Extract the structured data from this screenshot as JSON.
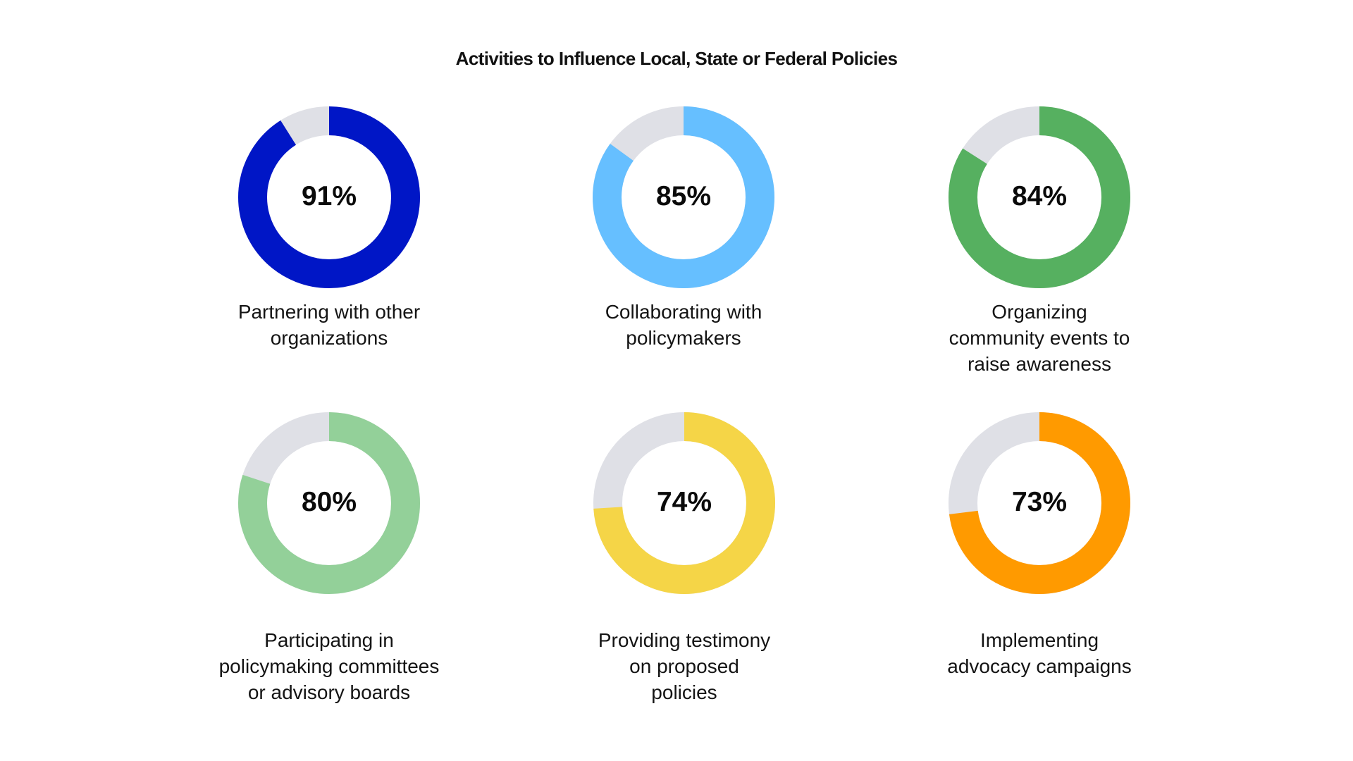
{
  "title": "Activities to Influence Local, State or Federal Policies",
  "track_color": "#DFE0E6",
  "items": [
    {
      "value": 91,
      "value_label": "91%",
      "label": "Partnering with other\norganizations",
      "color": "#0016C6"
    },
    {
      "value": 85,
      "value_label": "85%",
      "label": "Collaborating with\npolicymakers",
      "color": "#66BFFF"
    },
    {
      "value": 84,
      "value_label": "84%",
      "label": "Organizing\ncommunity events to\nraise awareness",
      "color": "#56B060"
    },
    {
      "value": 80,
      "value_label": "80%",
      "label": "Participating in\npolicymaking committees\nor advisory boards",
      "color": "#93D099"
    },
    {
      "value": 74,
      "value_label": "74%",
      "label": "Providing testimony\non proposed\npolicies",
      "color": "#F5D547"
    },
    {
      "value": 73,
      "value_label": "73%",
      "label": "Implementing\nadvocacy campaigns",
      "color": "#FF9A00"
    }
  ],
  "chart_data": {
    "type": "pie",
    "subtype": "donut-grid",
    "title": "Activities to Influence Local, State or Federal Policies",
    "categories": [
      "Partnering with other organizations",
      "Collaborating with policymakers",
      "Organizing community events to raise awareness",
      "Participating in policymaking committees or advisory boards",
      "Providing testimony on proposed policies",
      "Implementing advocacy campaigns"
    ],
    "values": [
      91,
      85,
      84,
      80,
      74,
      73
    ],
    "unit": "%",
    "colors": [
      "#0016C6",
      "#66BFFF",
      "#56B060",
      "#93D099",
      "#F5D547",
      "#FF9A00"
    ],
    "remainder_color": "#DFE0E6",
    "layout": "2 rows x 3 columns",
    "legend": "none",
    "grid": false
  }
}
